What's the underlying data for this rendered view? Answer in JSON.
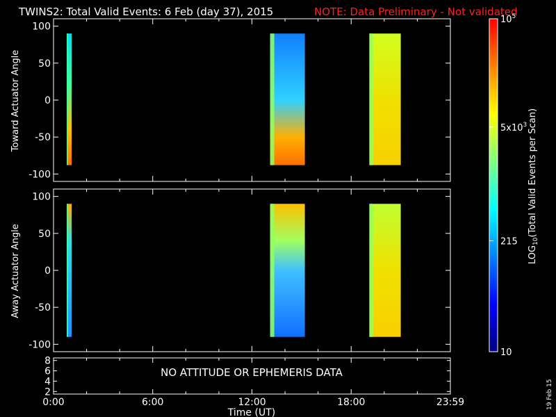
{
  "header": {
    "title": "TWINS2: Total Valid Events:  6 Feb (day  37), 2015",
    "note": "NOTE: Data Preliminary - Not validated"
  },
  "colorbar": {
    "label": "LOG10(Total Valid Events per Scan)",
    "ticks": [
      {
        "value": 10,
        "label": "10"
      },
      {
        "value": 215,
        "label": "215"
      },
      {
        "value": 5000,
        "label": "5x10^3"
      },
      {
        "value": 100000,
        "label": "10^5"
      }
    ],
    "range": [
      10,
      100000
    ],
    "scale": "log",
    "colors": [
      "#000080",
      "#0000ff",
      "#0080ff",
      "#00ffff",
      "#80ff80",
      "#ffff00",
      "#ff8000",
      "#ff0000"
    ]
  },
  "footer": {
    "x_axis_title": "Time (UT)",
    "date_stamp": "19 Feb 15",
    "attitude_message": "NO ATTITUDE OR EPHEMERIS DATA"
  },
  "chart_data": [
    {
      "type": "heatmap",
      "ylabel": "Toward Actuator Angle",
      "xlabel": "",
      "xlim": [
        0,
        24
      ],
      "ylim": [
        -110,
        110
      ],
      "yticks": [
        100,
        50,
        0,
        -50,
        -100
      ],
      "y_range_data": [
        -88,
        90
      ],
      "blocks": [
        {
          "x_start": 0.8,
          "x_end": 1.1,
          "gradient": [
            {
              "y": 90,
              "color": "#00e0f0"
            },
            {
              "y": 20,
              "color": "#40ffa0"
            },
            {
              "y": -40,
              "color": "#ffc000"
            },
            {
              "y": -88,
              "color": "#ff7000"
            }
          ],
          "edge_color": "#40ffa0"
        },
        {
          "x_start": 13.1,
          "x_end": 15.2,
          "gradient": [
            {
              "y": 90,
              "color": "#1080ff"
            },
            {
              "y": 0,
              "color": "#30d0ff"
            },
            {
              "y": -50,
              "color": "#ffb000"
            },
            {
              "y": -88,
              "color": "#ff7000"
            }
          ],
          "edge_color": "#90ff60"
        },
        {
          "x_start": 19.1,
          "x_end": 21.0,
          "gradient": [
            {
              "y": 90,
              "color": "#d0ff20"
            },
            {
              "y": 0,
              "color": "#f0e000"
            },
            {
              "y": -88,
              "color": "#f8d000"
            }
          ],
          "edge_color": "#90ff60"
        }
      ]
    },
    {
      "type": "heatmap",
      "ylabel": "Away Actuator Angle",
      "xlabel": "Time (UT)",
      "xlim": [
        0,
        24
      ],
      "ylim": [
        -110,
        110
      ],
      "yticks": [
        100,
        50,
        0,
        -50,
        -100
      ],
      "xticks": [
        "0:00",
        "6:00",
        "12:00",
        "18:00",
        "23:59"
      ],
      "y_range_data": [
        -90,
        90
      ],
      "blocks": [
        {
          "x_start": 0.8,
          "x_end": 1.1,
          "gradient": [
            {
              "y": 90,
              "color": "#ffb000"
            },
            {
              "y": 40,
              "color": "#30e0e0"
            },
            {
              "y": -90,
              "color": "#2090ff"
            }
          ],
          "edge_color": "#40ffa0"
        },
        {
          "x_start": 13.1,
          "x_end": 15.2,
          "gradient": [
            {
              "y": 90,
              "color": "#ffc000"
            },
            {
              "y": 40,
              "color": "#a0ff60"
            },
            {
              "y": 0,
              "color": "#40c0ff"
            },
            {
              "y": -90,
              "color": "#1070ff"
            }
          ],
          "edge_color": "#90ff60"
        },
        {
          "x_start": 19.1,
          "x_end": 21.0,
          "gradient": [
            {
              "y": 90,
              "color": "#c0ff30"
            },
            {
              "y": 0,
              "color": "#f0e000"
            },
            {
              "y": -90,
              "color": "#f8d000"
            }
          ],
          "edge_color": "#90ff60"
        }
      ]
    },
    {
      "type": "line",
      "xlim": [
        0,
        24
      ],
      "ylim": [
        1.5,
        8.5
      ],
      "yticks": [
        8,
        6,
        4,
        2
      ],
      "xticks": [
        "0:00",
        "6:00",
        "12:00",
        "18:00",
        "23:59"
      ],
      "series": []
    }
  ]
}
